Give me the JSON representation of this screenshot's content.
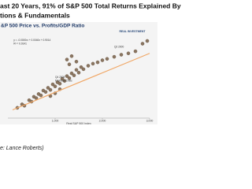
{
  "chart_data": {
    "type": "scatter",
    "title": "ast 20 Years,  91% of S&P 500 Total Returns Explained By",
    "subtitle": "tions & Fundamentals",
    "chart_title": "&P 500 Price vs. Profits/GDP Ratio",
    "logo": "REAL INVESTMENT",
    "x_label": "Real S&P 500 Index",
    "source": "e: Lance Roberts)",
    "annotations": [
      {
        "text": "y = -0.0000x² + 0.0040x + 0.9014",
        "x": 120,
        "y": 11.3
      },
      {
        "text": "R² = 0.9141",
        "x": 120,
        "y": 10.8
      },
      {
        "text": "Q2 2000",
        "x": 2250,
        "y": 10.3
      },
      {
        "text": "Q4 2008",
        "x": 1000,
        "y": 5.9
      },
      {
        "text": "Financial Crisis",
        "x": 1000,
        "y": 5.4
      }
    ],
    "color": "#8a7560",
    "trend_color": "#f0a868",
    "x": [
      200,
      300,
      350,
      450,
      500,
      550,
      600,
      650,
      700,
      750,
      800,
      850,
      900,
      950,
      1000,
      1050,
      1100,
      1150,
      1200,
      1250,
      1300,
      1350,
      1400,
      1450,
      1500,
      1550,
      1300,
      1250,
      1350,
      1450,
      1600,
      1700,
      1800,
      1900,
      2000,
      2100,
      2250,
      2400,
      2550,
      2700,
      2850,
      2950,
      900,
      1000,
      1100
    ],
    "values": [
      1.5,
      2.0,
      1.8,
      2.6,
      2.4,
      3.1,
      2.9,
      3.5,
      3.3,
      4.0,
      3.8,
      4.4,
      4.1,
      4.9,
      4.6,
      5.2,
      5.0,
      5.7,
      5.4,
      6.1,
      5.8,
      6.5,
      6.2,
      7.0,
      6.6,
      7.4,
      7.8,
      8.5,
      9.0,
      8.2,
      7.1,
      7.6,
      7.9,
      8.1,
      8.4,
      8.6,
      8.9,
      9.2,
      9.4,
      9.7,
      10.8,
      11.2,
      3.2,
      3.6,
      4.2
    ],
    "trend": {
      "x": [
        100,
        3000
      ],
      "values": [
        1.2,
        9.4
      ]
    },
    "xlim": [
      0,
      3000
    ],
    "ylim": [
      0,
      12
    ],
    "xticks": [
      {
        "value": 1000,
        "label": "1,000"
      },
      {
        "value": 2000,
        "label": "2,000"
      },
      {
        "value": 3000,
        "label": "3,000"
      }
    ]
  }
}
